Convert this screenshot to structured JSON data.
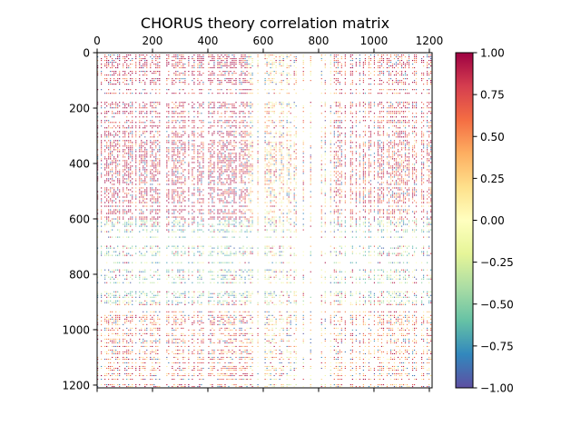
{
  "chart_data": {
    "type": "heatmap",
    "title": "CHORUS theory correlation matrix",
    "matrix_size": 1210,
    "x_ticks": [
      0,
      200,
      400,
      600,
      800,
      1000,
      1200
    ],
    "x_tick_labels": [
      "0",
      "200",
      "400",
      "600",
      "800",
      "1000",
      "1200"
    ],
    "y_ticks": [
      0,
      200,
      400,
      600,
      800,
      1000,
      1200
    ],
    "y_tick_labels": [
      "0",
      "200",
      "400",
      "600",
      "800",
      "1000",
      "1200"
    ],
    "x_axis_position": "top",
    "xlim": [
      0,
      1210
    ],
    "ylim": [
      1210,
      0
    ],
    "colorbar": {
      "colormap": "Spectral",
      "vmin": -1.0,
      "vmax": 1.0,
      "ticks": [
        1.0,
        0.75,
        0.5,
        0.25,
        0.0,
        -0.25,
        -0.5,
        -0.75,
        -1.0
      ],
      "tick_labels": [
        "1.00",
        "0.75",
        "0.50",
        "0.25",
        "0.00",
        "−0.25",
        "−0.50",
        "−0.75",
        "−1.00"
      ],
      "stops": [
        {
          "value": 1.0,
          "color": "#9e0142"
        },
        {
          "value": 0.8,
          "color": "#d53e4f"
        },
        {
          "value": 0.6,
          "color": "#f46d43"
        },
        {
          "value": 0.4,
          "color": "#fdae61"
        },
        {
          "value": 0.2,
          "color": "#fee08b"
        },
        {
          "value": 0.0,
          "color": "#ffffbf"
        },
        {
          "value": -0.2,
          "color": "#e6f598"
        },
        {
          "value": -0.4,
          "color": "#abdda4"
        },
        {
          "value": -0.6,
          "color": "#66c2a5"
        },
        {
          "value": -0.8,
          "color": "#3288bd"
        },
        {
          "value": -1.0,
          "color": "#5e4fa2"
        }
      ]
    },
    "note_missing": "white cells indicate NaN / undefined correlation"
  }
}
